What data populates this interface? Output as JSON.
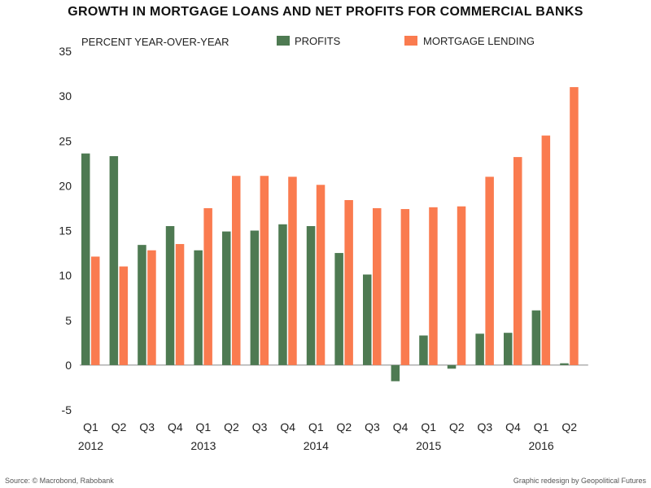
{
  "chart_data": {
    "type": "bar",
    "title": "GROWTH IN MORTGAGE LOANS AND NET PROFITS FOR COMMERCIAL BANKS",
    "ylabel": "PERCENT YEAR-OVER-YEAR",
    "xlabel": "",
    "ylim": [
      -5,
      35
    ],
    "yticks": [
      -5,
      0,
      5,
      10,
      15,
      20,
      25,
      30,
      35
    ],
    "grid": false,
    "legend_position": "top",
    "categories": [
      "Q1",
      "Q2",
      "Q3",
      "Q4",
      "Q1",
      "Q2",
      "Q3",
      "Q4",
      "Q1",
      "Q2",
      "Q3",
      "Q4",
      "Q1",
      "Q2",
      "Q3",
      "Q4",
      "Q1",
      "Q2"
    ],
    "years": [
      {
        "label": "2012",
        "index": 0
      },
      {
        "label": "2013",
        "index": 4
      },
      {
        "label": "2014",
        "index": 8
      },
      {
        "label": "2015",
        "index": 12
      },
      {
        "label": "2016",
        "index": 16
      }
    ],
    "series": [
      {
        "name": "PROFITS",
        "color": "#4e7a52",
        "values": [
          23.6,
          23.3,
          13.4,
          15.5,
          12.8,
          14.9,
          15.0,
          15.7,
          15.5,
          12.5,
          10.1,
          -1.8,
          3.3,
          -0.4,
          3.5,
          3.6,
          6.1,
          0.2
        ]
      },
      {
        "name": "MORTGAGE LENDING",
        "color": "#fa7b4f",
        "values": [
          12.1,
          11.0,
          12.8,
          13.5,
          17.5,
          21.1,
          21.1,
          21.0,
          20.1,
          18.4,
          17.5,
          17.4,
          17.6,
          17.7,
          21.0,
          23.2,
          25.6,
          31.0
        ]
      }
    ]
  },
  "footer": {
    "source": "Source: © Macrobond, Rabobank",
    "credit": "Graphic redesign by Geopolitical Futures"
  }
}
